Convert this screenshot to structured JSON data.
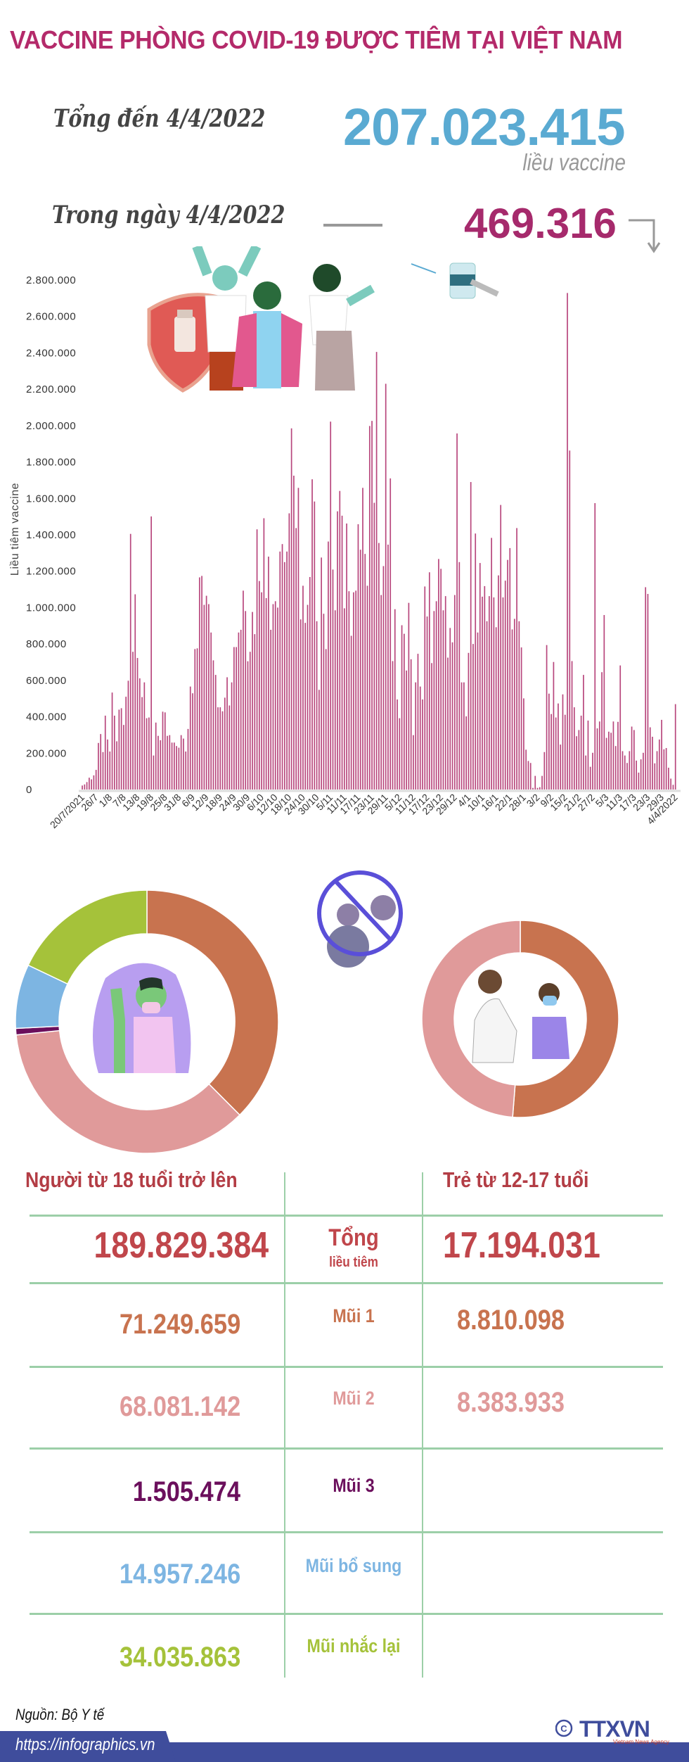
{
  "header": {
    "title": "VACCINE PHÒNG COVID-19 ĐƯỢC TIÊM TẠI VIỆT NAM",
    "total_label": "Tổng đến 4/4/2022",
    "total_value": "207.023.415",
    "unit_label": "liều vaccine",
    "day_label": "Trong ngày 4/4/2022",
    "day_value": "469.316",
    "day_trend_icon": "arrow-down-icon"
  },
  "colors": {
    "title": "#b42a6a",
    "bar": "#b8477d",
    "mui1": "#c8734f",
    "mui2": "#e09a9a",
    "mui3": "#6b0f5c",
    "bo_sung": "#7db5e2",
    "nhac_lai": "#a5c23a",
    "table_header": "#b33d45",
    "table_total": "#c0464b",
    "footer": "#3f4d9c"
  },
  "chart_data": {
    "type": "bar",
    "title": "",
    "xlabel": "",
    "ylabel": "Liều tiêm vaccine",
    "ylim": [
      0,
      2800000
    ],
    "y_ticks": [
      0,
      200000,
      400000,
      600000,
      800000,
      1000000,
      1200000,
      1400000,
      1600000,
      1800000,
      2000000,
      2200000,
      2400000,
      2600000,
      2800000
    ],
    "y_tick_labels": [
      "0",
      "200.000",
      "400.000",
      "600.000",
      "800.000",
      "1.000.000",
      "1.200.000",
      "1.400.000",
      "1.600.000",
      "1.800.000",
      "2.000.000",
      "2.200.000",
      "2.400.000",
      "2.600.000",
      "2.800.000"
    ],
    "x_range": [
      "20/7/2021",
      "4/4/2022"
    ],
    "x_tick_every_days": 6,
    "x_tick_labels": [
      "20/7/2021",
      "26/7",
      "1/8",
      "7/8",
      "13/8",
      "19/8",
      "25/8",
      "31/8",
      "6/9",
      "12/9",
      "18/9",
      "24/9",
      "30/9",
      "6/10",
      "12/10",
      "18/10",
      "24/10",
      "30/10",
      "5/11",
      "11/11",
      "17/11",
      "23/11",
      "29/11",
      "5/12",
      "11/12",
      "17/12",
      "23/12",
      "29/12",
      "4/1",
      "10/1",
      "16/1",
      "22/1",
      "28/1",
      "3/2",
      "9/2",
      "15/2",
      "21/2",
      "27/2",
      "5/3",
      "11/3",
      "17/3",
      "23/3",
      "29/3",
      "4/4/2022"
    ],
    "grid": false,
    "values": [
      22000,
      28000,
      41000,
      65000,
      56000,
      78000,
      108000,
      256000,
      305000,
      206000,
      406000,
      275000,
      209000,
      533000,
      406000,
      265000,
      439000,
      447000,
      355000,
      510000,
      598000,
      1405000,
      757000,
      1073000,
      723000,
      611000,
      508000,
      589000,
      392000,
      396000,
      1501000,
      187000,
      368000,
      295000,
      271000,
      428000,
      424000,
      295000,
      299000,
      258000,
      258000,
      239000,
      230000,
      299000,
      280000,
      209000,
      333000,
      566000,
      529000,
      772000,
      776000,
      1166000,
      1174000,
      1015000,
      1065000,
      1019000,
      863000,
      710000,
      630000,
      452000,
      452000,
      430000,
      505000,
      617000,
      462000,
      589000,
      783000,
      783000,
      863000,
      878000,
      1093000,
      981000,
      705000,
      757000,
      976000,
      854000,
      1430000,
      1146000,
      1084000,
      1491000,
      1052000,
      1280000,
      878000,
      1019000,
      1035000,
      1000000,
      1308000,
      1349000,
      1250000,
      1308000,
      1518000,
      1985000,
      1725000,
      1437000,
      1658000,
      935000,
      1120000,
      916000,
      1015000,
      1168000,
      1705000,
      1583000,
      925000,
      548000,
      1275000,
      966000,
      772000,
      1363000,
      2022000,
      1209000,
      985000,
      1529000,
      1641000,
      1505000,
      996000,
      1462000,
      1090000,
      845000,
      1084000,
      1093000,
      1458000,
      1318000,
      1658000,
      1295000,
      1120000,
      1998000,
      2026000,
      1576000,
      2405000,
      1355000,
      1069000,
      1228000,
      2230000,
      1346000,
      1710000,
      706000,
      991000,
      495000,
      392000,
      903000,
      856000,
      654000,
      1026000,
      716000,
      299000,
      589000,
      746000,
      566000,
      495000,
      1116000,
      951000,
      1194000,
      695000,
      981000,
      1035000,
      1267000,
      1213000,
      985000,
      1063000,
      725000,
      888000,
      809000,
      1069000,
      1957000,
      1250000,
      589000,
      589000,
      402000,
      751000,
      1690000,
      800000,
      1407000,
      863000,
      1245000,
      1060000,
      1118000,
      925000,
      1063000,
      1383000,
      1056000,
      892000,
      1177000,
      1564000,
      1056000,
      1148000,
      1262000,
      1327000,
      880000,
      938000,
      1437000,
      925000,
      781000,
      501000,
      219000,
      157000,
      146000,
      9000,
      75000,
      9000,
      13000,
      75000,
      206000,
      794000,
      527000,
      415000,
      701000,
      396000,
      473000,
      247000,
      523000,
      411000,
      2729000,
      1863000,
      706000,
      452000,
      293000,
      327000,
      406000,
      630000,
      187000,
      379000,
      125000,
      202000,
      1574000,
      336000,
      374000,
      645000,
      959000,
      284000,
      318000,
      312000,
      374000,
      239000,
      372000,
      682000,
      211000,
      187000,
      146000,
      211000,
      346000,
      327000,
      159000,
      93000,
      166000,
      202000,
      1112000,
      1075000,
      342000,
      290000,
      144000,
      211000,
      275000,
      383000,
      221000,
      228000,
      120000,
      60000,
      26000,
      469316
    ]
  },
  "donuts": {
    "adults": {
      "segments": [
        {
          "name": "Mũi 1",
          "value": 71249659,
          "color": "#c8734f"
        },
        {
          "name": "Mũi 2",
          "value": 68081142,
          "color": "#e09a9a"
        },
        {
          "name": "Mũi 3",
          "value": 1505474,
          "color": "#6b0f5c"
        },
        {
          "name": "Mũi bổ sung",
          "value": 14957246,
          "color": "#7db5e2"
        },
        {
          "name": "Mũi nhắc lại",
          "value": 34035863,
          "color": "#a5c23a"
        }
      ]
    },
    "children": {
      "segments": [
        {
          "name": "Mũi 1",
          "value": 8810098,
          "color": "#c8734f"
        },
        {
          "name": "Mũi 2",
          "value": 8383933,
          "color": "#e09a9a"
        }
      ]
    }
  },
  "table": {
    "col_adults": "Người từ 18 tuổi trở lên",
    "col_children": "Trẻ từ 12-17 tuổi",
    "rows": [
      {
        "label": "Tổng",
        "sublabel": "liều tiêm",
        "adults": "189.829.384",
        "children": "17.194.031",
        "color": "#c0464b"
      },
      {
        "label": "Mũi 1",
        "adults": "71.249.659",
        "children": "8.810.098",
        "color": "#c8734f"
      },
      {
        "label": "Mũi 2",
        "adults": "68.081.142",
        "children": "8.383.933",
        "color": "#e09a9a"
      },
      {
        "label": "Mũi 3",
        "adults": "1.505.474",
        "color": "#6b0f5c"
      },
      {
        "label": "Mũi bổ sung",
        "adults": "14.957.246",
        "color": "#7db5e2"
      },
      {
        "label": "Mũi nhắc lại",
        "adults": "34.035.863",
        "color": "#a5c23a"
      }
    ]
  },
  "footer": {
    "source": "Nguồn: Bộ Y tế",
    "url": "https://infographics.vn",
    "logo_text": "TTXVN",
    "logo_subtext": "Vietnam News Agency"
  }
}
